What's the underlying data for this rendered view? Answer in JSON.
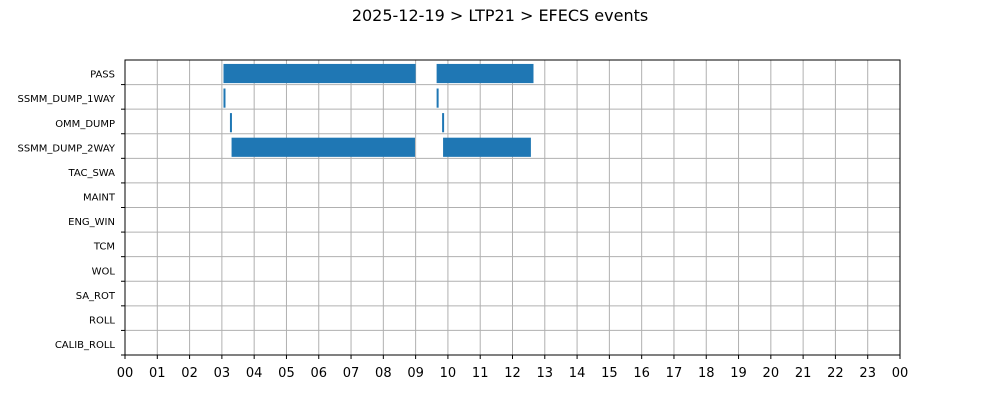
{
  "chart_data": {
    "type": "bar",
    "orientation": "horizontal",
    "title": "2025-12-19 > LTP21 > EFECS events",
    "xlabel": "",
    "ylabel": "",
    "x_unit": "hour",
    "xlim": [
      0,
      24
    ],
    "x_tick_labels": [
      "00",
      "01",
      "02",
      "03",
      "04",
      "05",
      "06",
      "07",
      "08",
      "09",
      "10",
      "11",
      "12",
      "13",
      "14",
      "15",
      "16",
      "17",
      "18",
      "19",
      "20",
      "21",
      "22",
      "23",
      "00"
    ],
    "categories": [
      "PASS",
      "SSMM_DUMP_1WAY",
      "OMM_DUMP",
      "SSMM_DUMP_2WAY",
      "TAC_SWA",
      "MAINT",
      "ENG_WIN",
      "TCM",
      "WOL",
      "SA_ROT",
      "ROLL",
      "CALIB_ROLL"
    ],
    "grid": true,
    "legend": "none",
    "bar_color": "#1f77b4",
    "events": [
      {
        "category": "PASS",
        "start": 3.05,
        "end": 9.0
      },
      {
        "category": "PASS",
        "start": 9.65,
        "end": 12.65
      },
      {
        "category": "SSMM_DUMP_1WAY",
        "start": 3.05,
        "end": 3.1
      },
      {
        "category": "SSMM_DUMP_1WAY",
        "start": 9.65,
        "end": 9.7
      },
      {
        "category": "OMM_DUMP",
        "start": 3.25,
        "end": 3.3
      },
      {
        "category": "OMM_DUMP",
        "start": 9.82,
        "end": 9.85
      },
      {
        "category": "SSMM_DUMP_2WAY",
        "start": 3.3,
        "end": 8.98
      },
      {
        "category": "SSMM_DUMP_2WAY",
        "start": 9.85,
        "end": 12.57
      }
    ]
  }
}
